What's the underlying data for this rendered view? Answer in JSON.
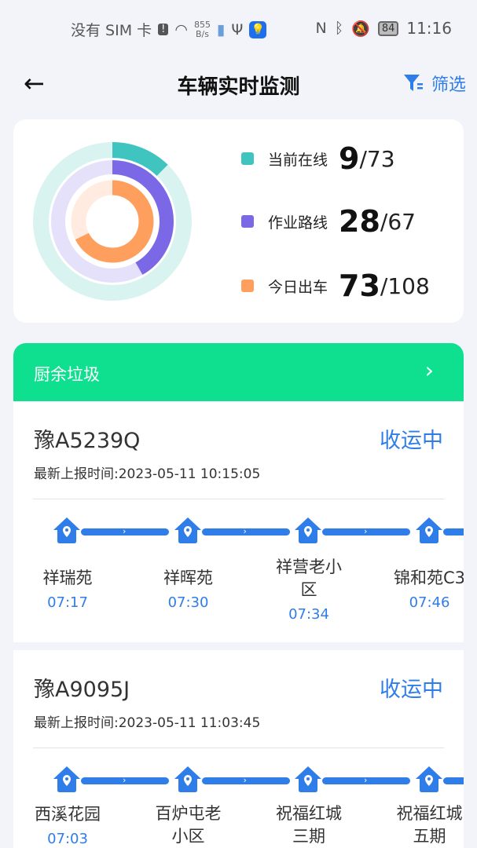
{
  "status_bar": {
    "carrier": "没有 SIM 卡",
    "net_speed_value": "855",
    "net_speed_unit": "B/s",
    "battery": "84",
    "time": "11:16"
  },
  "header": {
    "title": "车辆实时监测",
    "filter_label": "筛选"
  },
  "stats": [
    {
      "label": "当前在线",
      "value": "9",
      "total": "/73",
      "color": "#40c4bf",
      "track": "#d9f3f1",
      "fraction": 0.123
    },
    {
      "label": "作业路线",
      "value": "28",
      "total": "/67",
      "color": "#7b68e6",
      "track": "#e5e1fa",
      "fraction": 0.418
    },
    {
      "label": "今日出车",
      "value": "73",
      "total": "/108",
      "color": "#ff9f5e",
      "track": "#ffebdf",
      "fraction": 0.676
    }
  ],
  "category": {
    "title": "厨余垃圾"
  },
  "vehicles": [
    {
      "plate": "豫A5239Q",
      "status": "收运中",
      "report": "最新上报时间:2023-05-11 10:15:05",
      "stops": [
        {
          "name": "祥瑞苑",
          "time": "07:17"
        },
        {
          "name": "祥晖苑",
          "time": "07:30"
        },
        {
          "name": "祥营老小区",
          "time": "07:34"
        },
        {
          "name": "锦和苑C3",
          "time": "07:46"
        }
      ]
    },
    {
      "plate": "豫A9095J",
      "status": "收运中",
      "report": "最新上报时间:2023-05-11 11:03:45",
      "stops": [
        {
          "name": "西溪花园",
          "time": "07:03"
        },
        {
          "name": "百炉屯老小区",
          "time": ""
        },
        {
          "name": "祝福红城三期",
          "time": ""
        },
        {
          "name": "祝福红城五期",
          "time": ""
        }
      ]
    }
  ]
}
